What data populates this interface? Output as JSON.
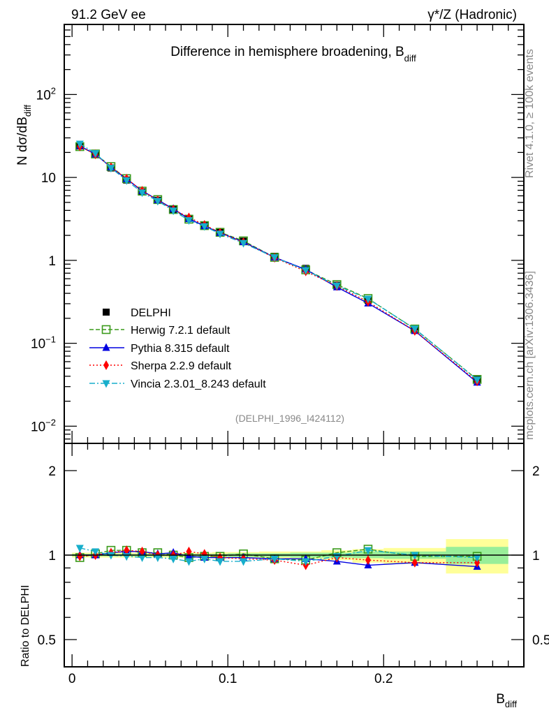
{
  "header": {
    "left": "91.2 GeV ee",
    "right_main": "γ*/Z (Hadronic)"
  },
  "side_labels": {
    "rivet": "Rivet 4.1.0, ≥ 100k events",
    "mcplots": "mcplots.cern.ch [arXiv:1306.3436]"
  },
  "chart_data": [
    {
      "type": "line",
      "title": "Difference in hemisphere broadening, B",
      "title_sub": "diff",
      "ylabel": "N  dσ/dB",
      "ylabel_sub": "diff",
      "xlabel": "B",
      "xlabel_sub": "diff",
      "yscale": "log",
      "ylim": [
        0.0062,
        700
      ],
      "xlim": [
        -0.005,
        0.29
      ],
      "yticks": [
        {
          "base": "10",
          "exp": "2",
          "value": 100
        },
        {
          "base": "10",
          "exp": "",
          "value": 10
        },
        {
          "base": "1",
          "exp": "",
          "value": 1
        },
        {
          "base": "10",
          "exp": "−1",
          "value": 0.1
        },
        {
          "base": "10",
          "exp": "−2",
          "value": 0.01
        }
      ],
      "analysis_label": "(DELPHI_1996_I424112)",
      "legend_position": "lower-left",
      "x": [
        0.005,
        0.015,
        0.025,
        0.035,
        0.045,
        0.055,
        0.065,
        0.075,
        0.085,
        0.095,
        0.11,
        0.13,
        0.15,
        0.17,
        0.19,
        0.22,
        0.26
      ],
      "bin_edges": [
        0,
        0.01,
        0.02,
        0.03,
        0.04,
        0.05,
        0.06,
        0.07,
        0.08,
        0.09,
        0.1,
        0.12,
        0.14,
        0.16,
        0.18,
        0.2,
        0.24,
        0.28
      ],
      "data": {
        "name": "DELPHI",
        "values": [
          24,
          19,
          13,
          9.3,
          6.7,
          5.3,
          4.1,
          3.2,
          2.65,
          2.2,
          1.7,
          1.12,
          0.8,
          0.5,
          0.33,
          0.15,
          0.037
        ]
      },
      "series": [
        {
          "name": "Herwig 7.2.1 default",
          "color": "#3a9a1a",
          "marker": "open-square",
          "dash": "6,3"
        },
        {
          "name": "Pythia 8.315 default",
          "color": "#0000e0",
          "marker": "triangle-up",
          "dash": ""
        },
        {
          "name": "Sherpa 2.2.9 default",
          "color": "#ff0000",
          "marker": "diamond",
          "dash": "2,3"
        },
        {
          "name": "Vincia 2.3.01_8.243 default",
          "color": "#17aecb",
          "marker": "triangle-down",
          "dash": "8,3,2,3"
        }
      ]
    },
    {
      "type": "line",
      "ylabel": "Ratio to DELPHI",
      "yscale": "log",
      "ylim": [
        0.4,
        2.5
      ],
      "yticks": [
        "2",
        "1",
        "0.5"
      ],
      "ytick_values": [
        2,
        1,
        0.5
      ],
      "xticks": [
        "0",
        "0.1",
        "0.2"
      ],
      "xtick_values": [
        0,
        0.1,
        0.2
      ],
      "band_total": [
        [
          0.98,
          1.02
        ],
        [
          0.98,
          1.02
        ],
        [
          0.98,
          1.02
        ],
        [
          0.98,
          1.02
        ],
        [
          0.98,
          1.02
        ],
        [
          0.98,
          1.02
        ],
        [
          0.98,
          1.02
        ],
        [
          0.98,
          1.02
        ],
        [
          0.98,
          1.02
        ],
        [
          0.975,
          1.025
        ],
        [
          0.975,
          1.025
        ],
        [
          0.97,
          1.03
        ],
        [
          0.97,
          1.03
        ],
        [
          0.96,
          1.04
        ],
        [
          0.94,
          1.05
        ],
        [
          0.93,
          1.06
        ],
        [
          0.86,
          1.14
        ]
      ],
      "band_stat": [
        [
          0.99,
          1.01
        ],
        [
          0.99,
          1.01
        ],
        [
          0.99,
          1.01
        ],
        [
          0.99,
          1.01
        ],
        [
          0.99,
          1.01
        ],
        [
          0.99,
          1.01
        ],
        [
          0.99,
          1.01
        ],
        [
          0.99,
          1.01
        ],
        [
          0.99,
          1.01
        ],
        [
          0.99,
          1.01
        ],
        [
          0.985,
          1.015
        ],
        [
          0.985,
          1.015
        ],
        [
          0.98,
          1.02
        ],
        [
          0.98,
          1.02
        ],
        [
          0.975,
          1.03
        ],
        [
          0.97,
          1.03
        ],
        [
          0.93,
          1.07
        ]
      ],
      "ratios": [
        {
          "name": "Herwig 7.2.1 default",
          "values": [
            0.98,
            1.01,
            1.04,
            1.04,
            1.02,
            1.02,
            1.0,
            0.98,
            0.99,
            0.99,
            1.01,
            0.97,
            0.96,
            1.02,
            1.05,
            0.99,
            0.99
          ]
        },
        {
          "name": "Pythia 8.315 default",
          "values": [
            1.0,
            1.0,
            1.02,
            1.03,
            1.03,
            1.01,
            1.02,
            0.99,
            0.98,
            0.98,
            0.98,
            0.97,
            0.97,
            0.95,
            0.92,
            0.94,
            0.91
          ]
        },
        {
          "name": "Sherpa 2.2.9 default",
          "values": [
            0.99,
            1.0,
            1.02,
            1.04,
            1.03,
            1.0,
            1.0,
            1.03,
            1.01,
            0.98,
            0.97,
            0.96,
            0.92,
            0.98,
            0.96,
            0.94,
            0.94
          ]
        },
        {
          "name": "Vincia 2.3.01_8.243 default",
          "values": [
            1.06,
            1.03,
            1.0,
            0.99,
            0.98,
            0.98,
            0.97,
            0.95,
            0.97,
            0.95,
            0.95,
            0.97,
            0.95,
            0.99,
            1.04,
            1.0,
            0.98
          ]
        }
      ]
    }
  ]
}
